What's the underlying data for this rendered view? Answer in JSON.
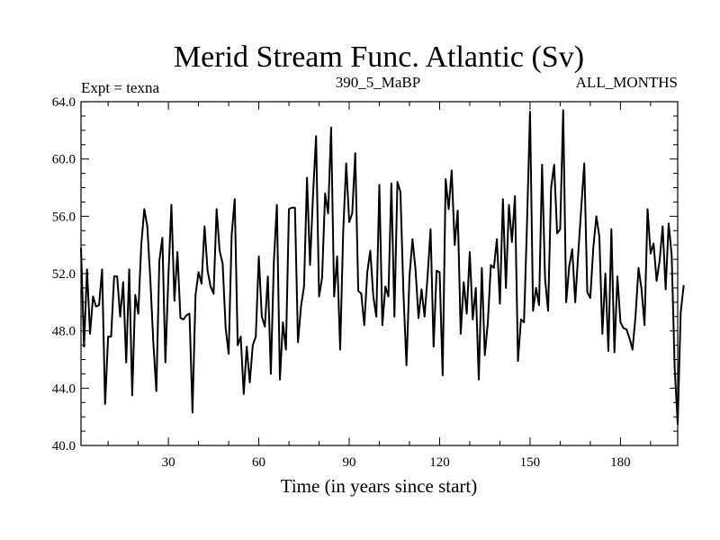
{
  "chart_data": {
    "type": "line",
    "title": "Merid Stream Func. Atlantic (Sv)",
    "subtitle_left": "Expt = texna",
    "subtitle_center": "390_5_MaBP",
    "subtitle_right": "ALL_MONTHS",
    "xlabel": "Time (in years since start)",
    "ylabel": "",
    "xlim": [
      1,
      199
    ],
    "ylim": [
      40.0,
      64.0
    ],
    "xticks": [
      30,
      60,
      90,
      120,
      150,
      180
    ],
    "xtick_labels": [
      "30",
      "60",
      "90",
      "120",
      "150",
      "180"
    ],
    "yticks": [
      40,
      44,
      48,
      52,
      56,
      60,
      64
    ],
    "ytick_labels": [
      "40.0",
      "44.0",
      "48.0",
      "52.0",
      "56.0",
      "60.0",
      "64.0"
    ],
    "series": [
      {
        "name": "Merid Stream Func. Atlantic",
        "color": "#000000",
        "values": [
          53.8,
          46.9,
          52.3,
          47.8,
          50.4,
          49.7,
          49.8,
          52.3,
          42.9,
          47.6,
          47.6,
          51.8,
          51.8,
          49.0,
          51.4,
          45.8,
          52.3,
          43.5,
          50.5,
          49.2,
          54.0,
          56.5,
          55.3,
          51.6,
          47.2,
          43.8,
          52.9,
          54.5,
          45.8,
          51.8,
          56.8,
          50.1,
          53.5,
          48.9,
          48.8,
          49.1,
          49.2,
          42.3,
          50.5,
          52.1,
          51.3,
          55.3,
          52.2,
          51.1,
          50.6,
          56.5,
          53.6,
          52.7,
          48.2,
          46.4,
          54.7,
          57.2,
          47.0,
          47.6,
          43.6,
          46.9,
          44.4,
          47.0,
          47.6,
          53.2,
          49.0,
          48.3,
          51.8,
          45.0,
          52.8,
          56.8,
          44.6,
          48.6,
          46.7,
          56.5,
          56.6,
          56.6,
          47.2,
          49.7,
          51.1,
          58.7,
          52.6,
          57.5,
          61.6,
          50.4,
          51.7,
          57.6,
          56.2,
          62.2,
          50.4,
          53.2,
          46.7,
          54.9,
          59.7,
          55.6,
          56.2,
          60.4,
          50.8,
          50.6,
          48.4,
          52.1,
          53.6,
          50.4,
          49.0,
          58.2,
          48.4,
          51.1,
          50.4,
          58.3,
          49.0,
          58.4,
          57.7,
          50.6,
          45.6,
          51.8,
          54.4,
          52.3,
          48.9,
          50.9,
          49.0,
          51.8,
          55.1,
          46.9,
          52.2,
          52.1,
          44.9,
          58.6,
          56.5,
          59.2,
          54.0,
          56.4,
          47.8,
          51.4,
          49.2,
          53.5,
          48.8,
          51.0,
          44.6,
          52.4,
          46.3,
          48.6,
          52.6,
          52.4,
          54.4,
          49.9,
          57.2,
          51.0,
          56.8,
          54.2,
          57.4,
          45.9,
          48.8,
          48.6,
          55.5,
          63.3,
          49.4,
          51.0,
          49.8,
          59.6,
          51.6,
          49.4,
          58.0,
          59.6,
          54.8,
          55.1,
          63.4,
          50.0,
          52.5,
          53.7,
          50.0,
          53.4,
          56.6,
          59.7,
          50.7,
          50.3,
          53.8,
          56.0,
          54.6,
          47.8,
          52.0,
          46.6,
          55.1,
          46.5,
          51.8,
          48.6,
          48.2,
          48.1,
          47.5,
          46.7,
          49.0,
          52.4,
          50.9,
          48.4,
          56.5,
          53.4,
          54.1,
          51.5,
          52.9,
          55.3,
          50.9,
          55.5,
          53.3,
          45.4,
          41.5,
          49.3,
          51.2
        ]
      }
    ]
  }
}
